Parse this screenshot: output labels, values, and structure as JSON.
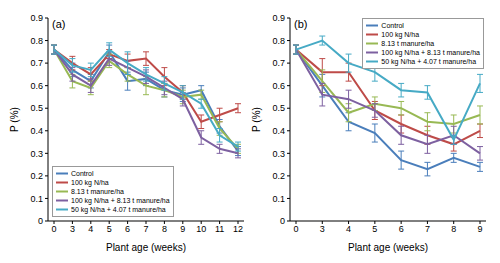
{
  "chart_data": [
    {
      "type": "line",
      "title": "(a)",
      "x_label": "Plant age (weeks)",
      "y_label": "P (%)",
      "categories": [
        "0",
        "3",
        "4",
        "5",
        "6",
        "7",
        "8",
        "9",
        "10",
        "11",
        "12"
      ],
      "ylim": [
        0,
        0.9
      ],
      "yticks": [
        0,
        0.1,
        0.2,
        0.3,
        0.4,
        0.5,
        0.6,
        0.7,
        0.8,
        0.9
      ],
      "grid": false,
      "legend": "lower left",
      "marker": "none",
      "line_style": "solid",
      "series": [
        {
          "name": "Control",
          "color": "#4a7ebb",
          "values": [
            0.76,
            0.67,
            0.62,
            0.75,
            0.62,
            0.63,
            0.58,
            0.56,
            0.58,
            0.42,
            0.31
          ],
          "errors": [
            0.02,
            0.03,
            0.03,
            0.03,
            0.04,
            0.03,
            0.03,
            0.03,
            0.02,
            0.03,
            0.02
          ]
        },
        {
          "name": "100 kg N/ha",
          "color": "#be4b48",
          "values": [
            0.76,
            0.7,
            0.65,
            0.74,
            0.71,
            0.72,
            0.64,
            0.57,
            0.44,
            0.47,
            0.5
          ],
          "errors": [
            0.02,
            0.03,
            0.03,
            0.02,
            0.03,
            0.03,
            0.04,
            0.03,
            0.03,
            0.03,
            0.02
          ]
        },
        {
          "name": "8.13 t manure/ha",
          "color": "#98b954",
          "values": [
            0.76,
            0.62,
            0.59,
            0.71,
            0.65,
            0.6,
            0.58,
            0.55,
            0.56,
            0.41,
            0.32
          ],
          "errors": [
            0.02,
            0.03,
            0.03,
            0.03,
            0.03,
            0.04,
            0.03,
            0.03,
            0.02,
            0.03,
            0.02
          ]
        },
        {
          "name": "100 kg N/ha + 8.13 t manure/ha",
          "color": "#7d60a0",
          "values": [
            0.76,
            0.65,
            0.6,
            0.72,
            0.68,
            0.64,
            0.59,
            0.54,
            0.37,
            0.32,
            0.3
          ],
          "errors": [
            0.02,
            0.03,
            0.03,
            0.03,
            0.03,
            0.03,
            0.03,
            0.03,
            0.03,
            0.02,
            0.02
          ]
        },
        {
          "name": "50 kg N/ha + 4.07 t manure/ha",
          "color": "#46aac5",
          "values": [
            0.76,
            0.69,
            0.67,
            0.76,
            0.7,
            0.65,
            0.61,
            0.57,
            0.52,
            0.38,
            0.33
          ],
          "errors": [
            0.02,
            0.03,
            0.03,
            0.03,
            0.05,
            0.03,
            0.03,
            0.03,
            0.02,
            0.03,
            0.02
          ]
        }
      ]
    },
    {
      "type": "line",
      "title": "(b)",
      "x_label": "Plant age (weeks)",
      "y_label": "P (%)",
      "categories": [
        "0",
        "3",
        "4",
        "5",
        "6",
        "7",
        "8",
        "9"
      ],
      "ylim": [
        0,
        0.9
      ],
      "yticks": [
        0,
        0.1,
        0.2,
        0.3,
        0.4,
        0.5,
        0.6,
        0.7,
        0.8,
        0.9
      ],
      "grid": false,
      "legend": "upper right",
      "marker": "none",
      "line_style": "solid",
      "series": [
        {
          "name": "Control",
          "color": "#4a7ebb",
          "values": [
            0.76,
            0.6,
            0.44,
            0.39,
            0.27,
            0.23,
            0.28,
            0.24
          ],
          "errors": [
            0.02,
            0.05,
            0.04,
            0.04,
            0.04,
            0.03,
            0.02,
            0.02
          ]
        },
        {
          "name": "100 kg N/ha",
          "color": "#be4b48",
          "values": [
            0.76,
            0.66,
            0.66,
            0.49,
            0.43,
            0.38,
            0.34,
            0.4
          ],
          "errors": [
            0.02,
            0.06,
            0.04,
            0.04,
            0.04,
            0.04,
            0.03,
            0.03
          ]
        },
        {
          "name": "8.13 t manure/ha",
          "color": "#98b954",
          "values": [
            0.76,
            0.62,
            0.48,
            0.52,
            0.5,
            0.44,
            0.43,
            0.47
          ],
          "errors": [
            0.02,
            0.05,
            0.04,
            0.03,
            0.03,
            0.04,
            0.04,
            0.04
          ]
        },
        {
          "name": "100 kg N/ha + 8.13 t manure/ha",
          "color": "#7d60a0",
          "values": [
            0.76,
            0.56,
            0.54,
            0.49,
            0.38,
            0.34,
            0.38,
            0.3
          ],
          "errors": [
            0.02,
            0.05,
            0.04,
            0.03,
            0.04,
            0.04,
            0.04,
            0.03
          ]
        },
        {
          "name": "50 kg N/ha + 4.07 t manure/ha",
          "color": "#46aac5",
          "values": [
            0.76,
            0.8,
            0.7,
            0.66,
            0.58,
            0.57,
            0.36,
            0.61
          ],
          "errors": [
            0.02,
            0.02,
            0.04,
            0.04,
            0.03,
            0.03,
            0.02,
            0.04
          ]
        }
      ]
    }
  ]
}
